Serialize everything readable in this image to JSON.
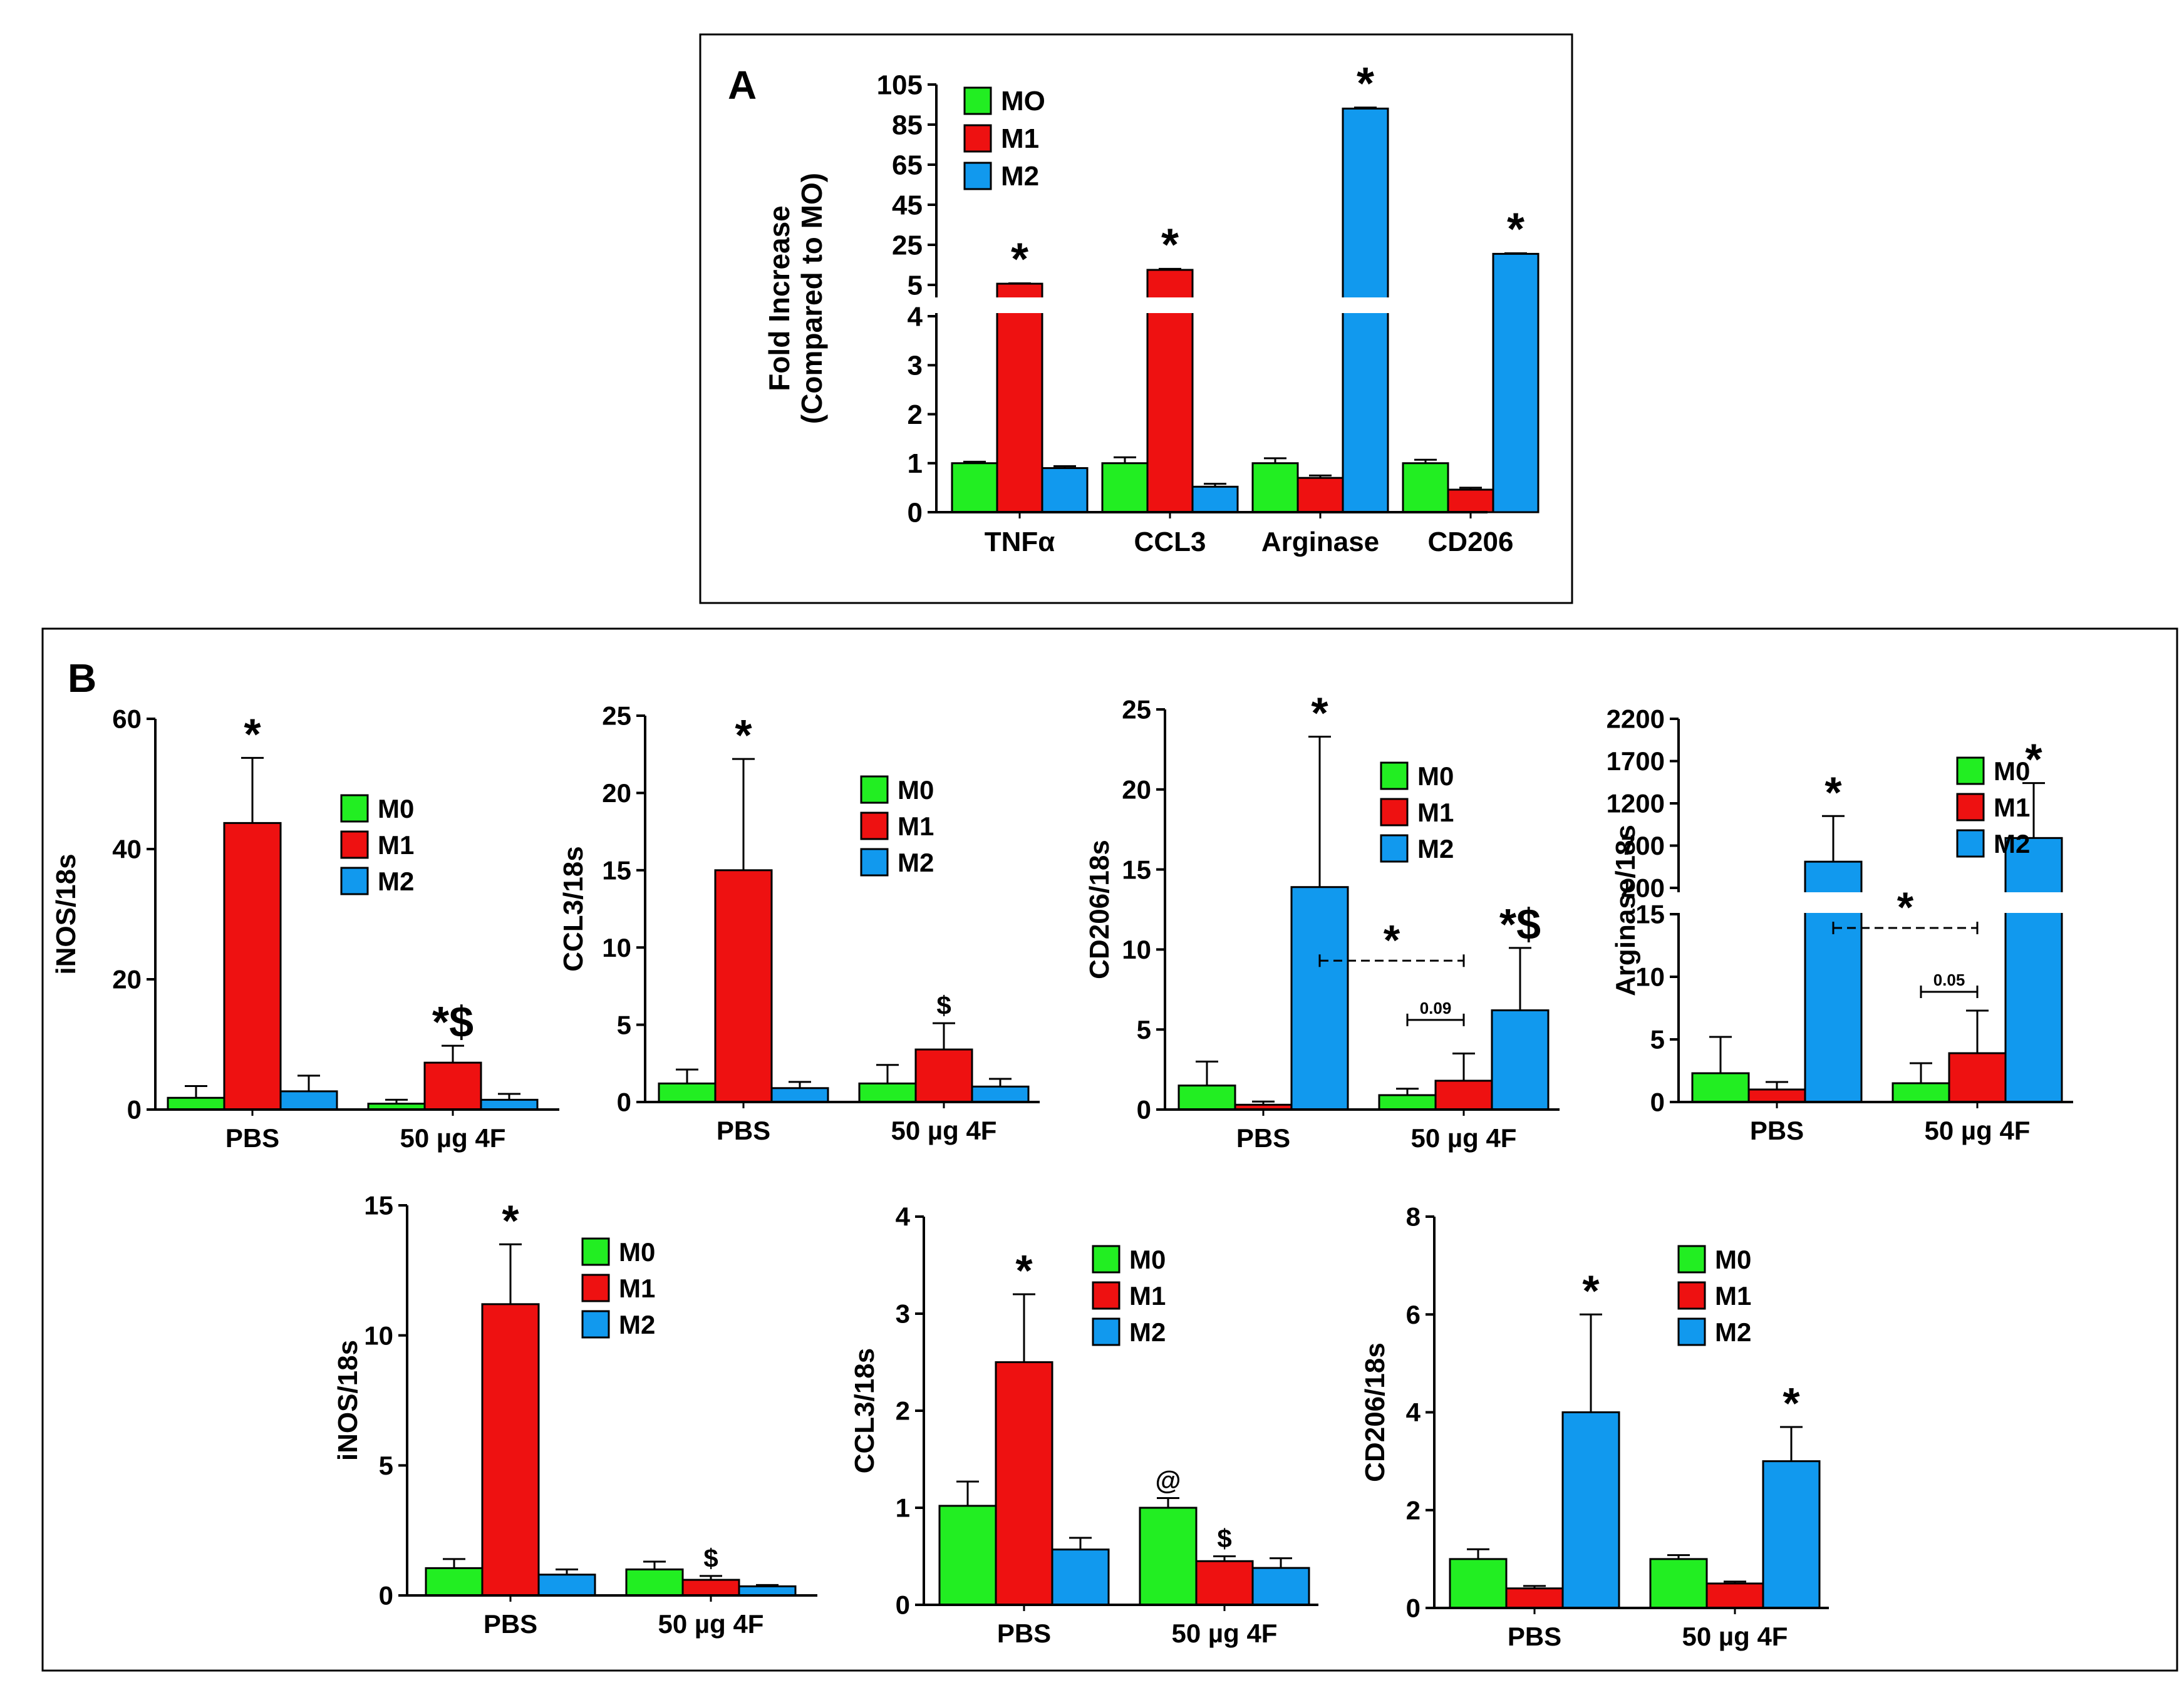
{
  "colors": {
    "M0": "#22ee22",
    "M1": "#ee1111",
    "M2": "#1199ee"
  },
  "panel_labels": {
    "a": "A",
    "b": "B"
  },
  "chart_data": [
    {
      "id": "A",
      "type": "bar",
      "title": "",
      "ylabel": [
        "Fold Increase",
        "(Compared to MO)"
      ],
      "categories": [
        "TNFα",
        "CCL3",
        "Arginase",
        "CD206"
      ],
      "legend": [
        "MO",
        "M1",
        "M2"
      ],
      "broken_axis": true,
      "ylim_low": [
        0,
        4
      ],
      "ylim_high": [
        5,
        105
      ],
      "yticks_low": [
        "0",
        "1",
        "2",
        "3",
        "4"
      ],
      "yticks_high": [
        "5",
        "25",
        "45",
        "65",
        "85",
        "105"
      ],
      "series": [
        {
          "name": "MO",
          "values": [
            1,
            1,
            1,
            1
          ],
          "errors": [
            0.03,
            0.12,
            0.1,
            0.07
          ]
        },
        {
          "name": "M1",
          "values": [
            5.6,
            12.5,
            0.7,
            0.46
          ],
          "errors": [
            0.2,
            0.5,
            0.05,
            0.04
          ]
        },
        {
          "name": "M2",
          "values": [
            0.9,
            0.52,
            93,
            20.5
          ],
          "errors": [
            0.04,
            0.06,
            0.5,
            0.3
          ]
        }
      ],
      "annotations": [
        {
          "text": "*",
          "series": 1,
          "cat": 0
        },
        {
          "text": "*",
          "series": 1,
          "cat": 1
        },
        {
          "text": "*",
          "series": 2,
          "cat": 2
        },
        {
          "text": "*",
          "series": 2,
          "cat": 3
        }
      ]
    },
    {
      "id": "B1",
      "type": "bar",
      "ylabel": [
        "iNOS/18s"
      ],
      "categories": [
        "PBS",
        "50 µg 4F"
      ],
      "legend": [
        "M0",
        "M1",
        "M2"
      ],
      "ylim": [
        0,
        60
      ],
      "yticks": [
        "0",
        "20",
        "40",
        "60"
      ],
      "series": [
        {
          "name": "M0",
          "values": [
            1.8,
            0.9
          ],
          "errors": [
            1.8,
            0.6
          ]
        },
        {
          "name": "M1",
          "values": [
            44,
            7.2
          ],
          "errors": [
            10,
            2.6
          ]
        },
        {
          "name": "M2",
          "values": [
            2.8,
            1.5
          ],
          "errors": [
            2.4,
            0.9
          ]
        }
      ],
      "annotations": [
        {
          "text": "*",
          "series": 1,
          "cat": 0
        },
        {
          "text": "*$",
          "series": 1,
          "cat": 1
        }
      ]
    },
    {
      "id": "B2",
      "type": "bar",
      "ylabel": [
        "CCL3/18s"
      ],
      "categories": [
        "PBS",
        "50 µg 4F"
      ],
      "legend": [
        "M0",
        "M1",
        "M2"
      ],
      "ylim": [
        0,
        25
      ],
      "yticks": [
        "0",
        "5",
        "10",
        "15",
        "20",
        "25"
      ],
      "series": [
        {
          "name": "M0",
          "values": [
            1.2,
            1.2
          ],
          "errors": [
            0.9,
            1.2
          ]
        },
        {
          "name": "M1",
          "values": [
            15,
            3.4
          ],
          "errors": [
            7.2,
            1.7
          ]
        },
        {
          "name": "M2",
          "values": [
            0.9,
            1.0
          ],
          "errors": [
            0.4,
            0.5
          ]
        }
      ],
      "annotations": [
        {
          "text": "*",
          "series": 1,
          "cat": 0
        },
        {
          "text": "$",
          "series": 1,
          "cat": 1
        }
      ]
    },
    {
      "id": "B3",
      "type": "bar",
      "ylabel": [
        "CD206/18s"
      ],
      "categories": [
        "PBS",
        "50 µg 4F"
      ],
      "legend": [
        "M0",
        "M1",
        "M2"
      ],
      "ylim": [
        0,
        25
      ],
      "yticks": [
        "0",
        "5",
        "10",
        "15",
        "20",
        "25"
      ],
      "series": [
        {
          "name": "M0",
          "values": [
            1.5,
            0.9
          ],
          "errors": [
            1.5,
            0.4
          ]
        },
        {
          "name": "M1",
          "values": [
            0.3,
            1.8
          ],
          "errors": [
            0.2,
            1.7
          ]
        },
        {
          "name": "M2",
          "values": [
            13.9,
            6.2
          ],
          "errors": [
            9.4,
            3.9
          ]
        }
      ],
      "annotations": [
        {
          "text": "*",
          "series": 2,
          "cat": 0
        },
        {
          "text": "*$",
          "series": 2,
          "cat": 1
        }
      ],
      "comparisons": [
        {
          "text": "*",
          "from": [
            2,
            0
          ],
          "to": [
            1,
            1
          ],
          "y": 9.3,
          "dashed": true
        },
        {
          "text": "0.09",
          "from": [
            0,
            1
          ],
          "to": [
            1,
            1
          ],
          "y": 5.6,
          "dashed": false
        }
      ]
    },
    {
      "id": "B4",
      "type": "bar",
      "ylabel": [
        "Arginase/18s"
      ],
      "categories": [
        "PBS",
        "50 µg 4F"
      ],
      "legend": [
        "M0",
        "M1",
        "M2"
      ],
      "broken_axis": true,
      "ylim_low": [
        0,
        15
      ],
      "ylim_high": [
        200,
        2200
      ],
      "yticks_low": [
        "0",
        "5",
        "10",
        "15"
      ],
      "yticks_high": [
        "200",
        "700",
        "1200",
        "1700",
        "2200"
      ],
      "series": [
        {
          "name": "M0",
          "values": [
            2.3,
            1.5
          ],
          "errors": [
            2.9,
            1.6
          ]
        },
        {
          "name": "M1",
          "values": [
            1.0,
            3.9
          ],
          "errors": [
            0.6,
            3.4
          ]
        },
        {
          "name": "M2",
          "values": [
            510,
            790
          ],
          "errors": [
            540,
            650
          ]
        }
      ],
      "annotations": [
        {
          "text": "*",
          "series": 2,
          "cat": 0
        },
        {
          "text": "*",
          "series": 2,
          "cat": 1
        }
      ],
      "comparisons": [
        {
          "text": "*",
          "from": [
            2,
            0
          ],
          "to": [
            1,
            1
          ],
          "y": 13.9,
          "dashed": true
        },
        {
          "text": "0.05",
          "from": [
            0,
            1
          ],
          "to": [
            1,
            1
          ],
          "y": 8.8,
          "dashed": false
        }
      ]
    },
    {
      "id": "B5",
      "type": "bar",
      "ylabel": [
        "iNOS/18s"
      ],
      "categories": [
        "PBS",
        "50 µg 4F"
      ],
      "legend": [
        "M0",
        "M1",
        "M2"
      ],
      "ylim": [
        0,
        15
      ],
      "yticks": [
        "0",
        "5",
        "10",
        "15"
      ],
      "series": [
        {
          "name": "M0",
          "values": [
            1.05,
            1.0
          ],
          "errors": [
            0.35,
            0.3
          ]
        },
        {
          "name": "M1",
          "values": [
            11.2,
            0.6
          ],
          "errors": [
            2.3,
            0.15
          ]
        },
        {
          "name": "M2",
          "values": [
            0.8,
            0.35
          ],
          "errors": [
            0.2,
            0.05
          ]
        }
      ],
      "annotations": [
        {
          "text": "*",
          "series": 1,
          "cat": 0
        },
        {
          "text": "$",
          "series": 1,
          "cat": 1
        }
      ]
    },
    {
      "id": "B6",
      "type": "bar",
      "ylabel": [
        "CCL3/18s"
      ],
      "categories": [
        "PBS",
        "50 µg 4F"
      ],
      "legend": [
        "M0",
        "M1",
        "M2"
      ],
      "ylim": [
        0,
        4
      ],
      "yticks": [
        "0",
        "1",
        "2",
        "3",
        "4"
      ],
      "series": [
        {
          "name": "M0",
          "values": [
            1.02,
            1.0
          ],
          "errors": [
            0.25,
            0.1
          ]
        },
        {
          "name": "M1",
          "values": [
            2.5,
            0.45
          ],
          "errors": [
            0.7,
            0.05
          ]
        },
        {
          "name": "M2",
          "values": [
            0.57,
            0.38
          ],
          "errors": [
            0.12,
            0.1
          ]
        }
      ],
      "annotations": [
        {
          "text": "*",
          "series": 1,
          "cat": 0
        },
        {
          "text": "@",
          "series": 0,
          "cat": 1
        },
        {
          "text": "$",
          "series": 1,
          "cat": 1
        }
      ]
    },
    {
      "id": "B7",
      "type": "bar",
      "ylabel": [
        "CD206/18s"
      ],
      "categories": [
        "PBS",
        "50 µg 4F"
      ],
      "legend": [
        "M0",
        "M1",
        "M2"
      ],
      "ylim": [
        0,
        8
      ],
      "yticks": [
        "0",
        "2",
        "4",
        "6",
        "8"
      ],
      "series": [
        {
          "name": "M0",
          "values": [
            1.0,
            1.0
          ],
          "errors": [
            0.2,
            0.08
          ]
        },
        {
          "name": "M1",
          "values": [
            0.4,
            0.5
          ],
          "errors": [
            0.05,
            0.04
          ]
        },
        {
          "name": "M2",
          "values": [
            4.0,
            3.0
          ],
          "errors": [
            2.0,
            0.7
          ]
        }
      ],
      "annotations": [
        {
          "text": "*",
          "series": 2,
          "cat": 0
        },
        {
          "text": "*",
          "series": 2,
          "cat": 1
        }
      ]
    }
  ]
}
